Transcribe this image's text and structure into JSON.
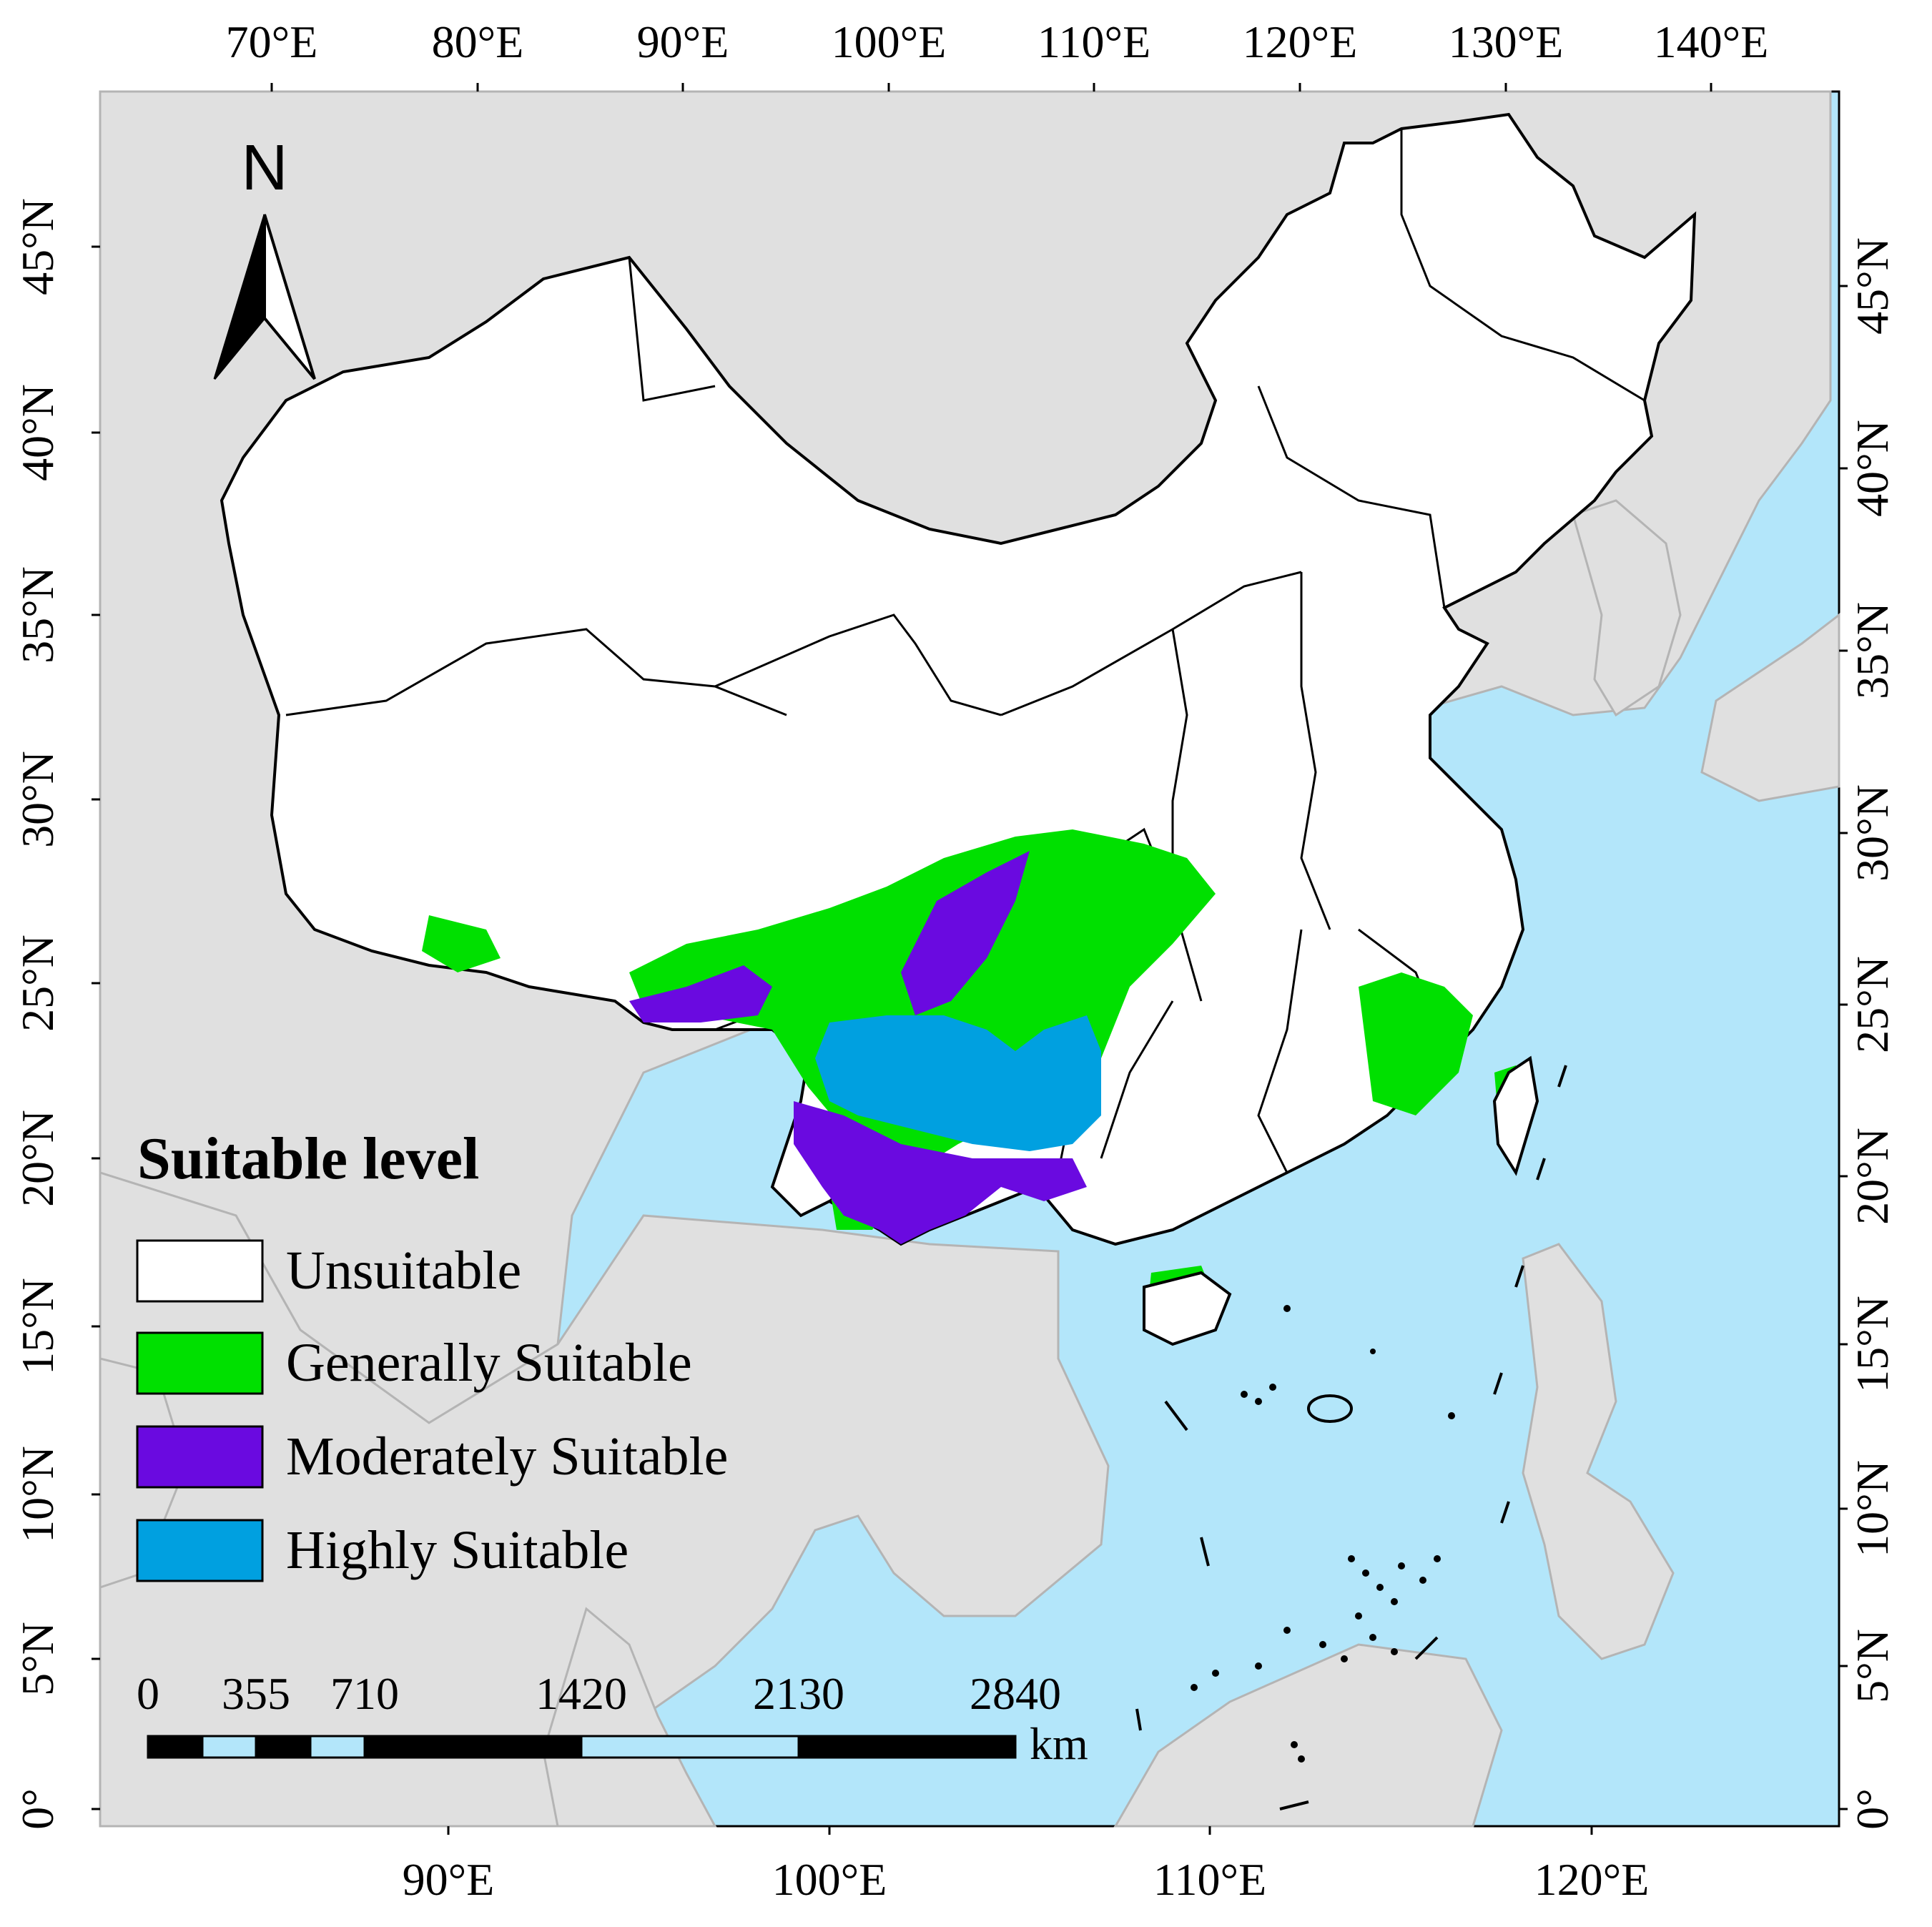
{
  "colors": {
    "sea": "#b3e6fa",
    "foreign_land": "#e0e0e0",
    "foreign_border": "#b4b4b4",
    "china_land": "#ffffff",
    "china_border": "#000000",
    "unsuitable": "#ffffff",
    "generally_suitable": "#00e000",
    "moderately_suitable": "#6a0ae0",
    "highly_suitable": "#00a0e0",
    "scale_bar_dark": "#000000",
    "scale_bar_light": "#b3e6fa"
  },
  "axes": {
    "top_labels": [
      "70°E",
      "80°E",
      "90°E",
      "100°E",
      "110°E",
      "120°E",
      "130°E",
      "140°E"
    ],
    "bottom_labels": [
      "90°E",
      "100°E",
      "110°E",
      "120°E"
    ],
    "left_labels": [
      "45°N",
      "40°N",
      "35°N",
      "30°N",
      "25°N",
      "20°N",
      "15°N",
      "10°N",
      "5°N",
      "0°"
    ],
    "right_labels": [
      "45°N",
      "40°N",
      "35°N",
      "30°N",
      "25°N",
      "20°N",
      "15°N",
      "10°N",
      "5°N",
      "0°"
    ]
  },
  "north_arrow": {
    "label": "N"
  },
  "legend": {
    "title": "Suitable level",
    "items": [
      {
        "label": "Unsuitable",
        "color": "#ffffff"
      },
      {
        "label": "Generally Suitable",
        "color": "#00e000"
      },
      {
        "label": "Moderately Suitable",
        "color": "#6a0ae0"
      },
      {
        "label": "Highly Suitable",
        "color": "#00a0e0"
      }
    ]
  },
  "scale_bar": {
    "ticks": [
      "0",
      "355",
      "710",
      "1420",
      "2130",
      "2840"
    ],
    "unit": "km"
  }
}
